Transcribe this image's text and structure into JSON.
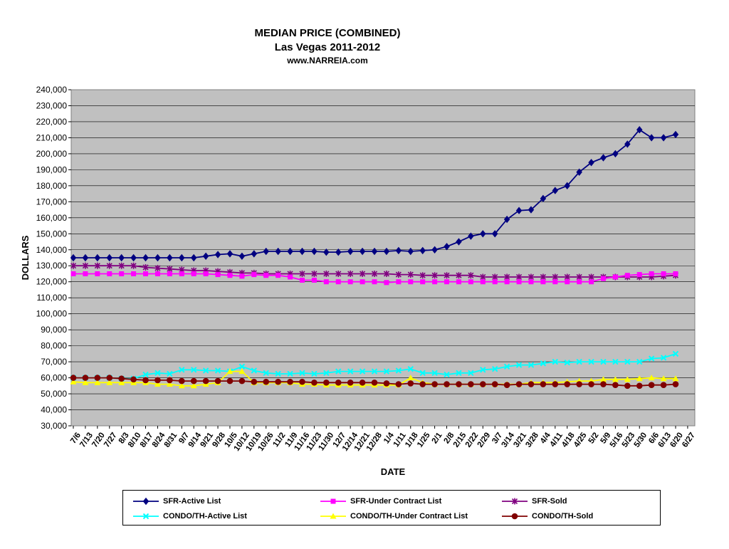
{
  "chart_data": {
    "type": "line",
    "title": "MEDIAN PRICE  (COMBINED)",
    "subtitle": "Las Vegas 2011-2012",
    "source": "www.NARREIA.com",
    "xlabel": "DATE",
    "ylabel": "DOLLARS",
    "ylim": [
      30000,
      240000
    ],
    "ytick_step": 10000,
    "grid": "horizontal",
    "legend_position": "bottom",
    "background": "#c0c0c0",
    "categories": [
      "7/6",
      "7/13",
      "7/20",
      "7/27",
      "8/3",
      "8/10",
      "8/17",
      "8/24",
      "8/31",
      "9/7",
      "9/14",
      "9/21",
      "9/28",
      "10/5",
      "10/12",
      "10/19",
      "10/26",
      "11/2",
      "11/9",
      "11/16",
      "11/23",
      "11/30",
      "12/7",
      "12/14",
      "12/21",
      "12/28",
      "1/4",
      "1/11",
      "1/18",
      "1/25",
      "2/1",
      "2/8",
      "2/15",
      "2/22",
      "2/29",
      "3/7",
      "3/14",
      "3/21",
      "3/28",
      "4/4",
      "4/11",
      "4/18",
      "4/25",
      "5/2",
      "5/9",
      "5/16",
      "5/23",
      "5/30",
      "6/6",
      "6/13",
      "6/20",
      "6/27"
    ],
    "series": [
      {
        "name": "SFR-Active List",
        "color": "#000080",
        "marker": "diamond",
        "values": [
          135000,
          135000,
          135000,
          135000,
          135000,
          135000,
          135000,
          135000,
          135000,
          135000,
          135000,
          136000,
          137000,
          137500,
          136000,
          137500,
          139000,
          139000,
          139000,
          139000,
          139000,
          138500,
          138500,
          139000,
          139000,
          139000,
          139000,
          139500,
          139000,
          139500,
          140000,
          142000,
          145000,
          148500,
          150000,
          150000,
          159000,
          164500,
          165000,
          172000,
          177000,
          180000,
          188500,
          194500,
          197500,
          200000,
          206000,
          215000,
          210000,
          210000,
          212000,
          null
        ]
      },
      {
        "name": "SFR-Under Contract List",
        "color": "#ff00ff",
        "marker": "square",
        "values": [
          125000,
          125000,
          125000,
          125000,
          125000,
          125000,
          125000,
          125000,
          125000,
          125000,
          125000,
          125000,
          124500,
          124000,
          123500,
          124500,
          124000,
          124000,
          123000,
          121000,
          121000,
          120000,
          120000,
          120000,
          120000,
          120000,
          119500,
          120000,
          120000,
          120000,
          120000,
          120000,
          120000,
          120000,
          120000,
          120000,
          120000,
          120000,
          120000,
          120000,
          120000,
          120000,
          120000,
          120000,
          122000,
          123000,
          124000,
          124500,
          125000,
          125000,
          125000,
          null
        ]
      },
      {
        "name": "SFR-Sold",
        "color": "#800080",
        "marker": "star",
        "values": [
          130000,
          130000,
          130000,
          130000,
          130000,
          130000,
          129000,
          128500,
          128000,
          127500,
          127000,
          127000,
          126500,
          126000,
          125500,
          125500,
          125000,
          125000,
          125000,
          125000,
          125000,
          125000,
          125000,
          125000,
          125000,
          125000,
          125000,
          124500,
          124500,
          124000,
          124000,
          124000,
          124000,
          124000,
          123000,
          123000,
          123000,
          123000,
          123000,
          123000,
          123000,
          123000,
          123000,
          123000,
          123000,
          123000,
          123000,
          123000,
          123000,
          123500,
          124000,
          null
        ]
      },
      {
        "name": "CONDO/TH-Active List",
        "color": "#00ffff",
        "marker": "x",
        "values": [
          60000,
          60000,
          60000,
          60000,
          59500,
          59500,
          62000,
          63000,
          62500,
          65000,
          65000,
          64500,
          64500,
          64000,
          67000,
          64500,
          63000,
          62500,
          62500,
          63000,
          62500,
          63000,
          64000,
          64000,
          64000,
          64000,
          64000,
          64500,
          65500,
          63000,
          63000,
          62000,
          63000,
          63000,
          65000,
          65500,
          67000,
          68000,
          68000,
          69000,
          70000,
          69500,
          70000,
          70000,
          70000,
          70000,
          70000,
          70000,
          72000,
          72500,
          75000,
          null
        ]
      },
      {
        "name": "CONDO/TH-Under Contract List",
        "color": "#ffff00",
        "marker": "triangle",
        "values": [
          57500,
          57000,
          57000,
          57000,
          57000,
          57000,
          57000,
          56000,
          56000,
          55000,
          55000,
          56000,
          57000,
          64000,
          64000,
          57000,
          57000,
          57000,
          57000,
          56000,
          56000,
          55500,
          55500,
          55500,
          55500,
          55500,
          55500,
          55500,
          60000,
          57000,
          56000,
          56000,
          56000,
          56000,
          56000,
          56000,
          56000,
          56000,
          57000,
          57000,
          57000,
          57500,
          58000,
          58000,
          59000,
          59000,
          59000,
          59500,
          60000,
          59500,
          59500,
          null
        ]
      },
      {
        "name": "CONDO/TH-Sold",
        "color": "#800000",
        "marker": "circle",
        "values": [
          60000,
          60000,
          60000,
          60000,
          59500,
          59000,
          58500,
          58500,
          58500,
          58000,
          58000,
          58000,
          58000,
          58000,
          58000,
          57500,
          57500,
          57500,
          57500,
          57500,
          57000,
          57000,
          57000,
          57000,
          57000,
          57000,
          56500,
          56000,
          56500,
          56000,
          56000,
          56000,
          56000,
          56000,
          56000,
          56000,
          55500,
          56000,
          56000,
          56000,
          56000,
          56000,
          56000,
          56000,
          56000,
          55500,
          55000,
          55000,
          55500,
          55500,
          56000,
          null
        ]
      }
    ]
  }
}
